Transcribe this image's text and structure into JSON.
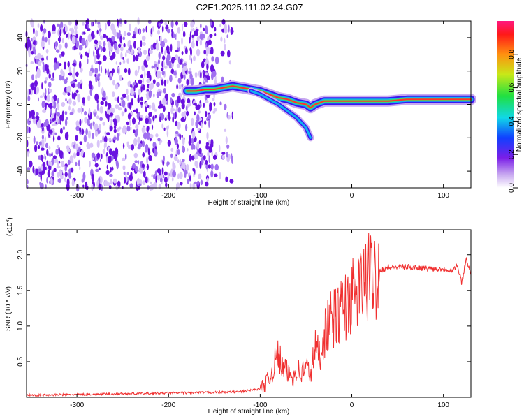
{
  "title": "C2E1.2025.111.02.34.G07",
  "colorbar": {
    "label": "Normalized spectral amplitude",
    "ticks": [
      "0.0",
      "0.2",
      "0.4",
      "0.6",
      "0.8"
    ],
    "tick_values": [
      0.0,
      0.2,
      0.4,
      0.6,
      0.8
    ],
    "range": [
      0,
      1
    ]
  },
  "chart_data": [
    {
      "type": "heatmap",
      "xlabel": "Height of straight line (km)",
      "ylabel": "Frequency (Hz)",
      "xlim": [
        -355,
        130
      ],
      "ylim": [
        -50,
        50
      ],
      "xticks": [
        "-300",
        "-200",
        "-100",
        "0",
        "100"
      ],
      "xtick_values": [
        -300,
        -200,
        -100,
        0,
        100
      ],
      "yticks": [
        "-40",
        "-20",
        "0",
        "20",
        "40"
      ],
      "ytick_values": [
        -40,
        -20,
        0,
        20,
        40
      ],
      "ridge": {
        "x": [
          -180,
          -170,
          -160,
          -150,
          -140,
          -130,
          -120,
          -110,
          -100,
          -90,
          -80,
          -70,
          -60,
          -50,
          -45,
          -40,
          -30,
          -20,
          -10,
          0,
          20,
          40,
          60,
          80,
          100,
          120,
          130
        ],
        "y": [
          8,
          8,
          9,
          9,
          10,
          11,
          10,
          9,
          8,
          6,
          4,
          3,
          1,
          0,
          -2,
          0,
          2,
          2,
          2,
          2,
          2,
          2,
          3,
          3,
          3,
          3,
          3
        ]
      },
      "branch": {
        "x": [
          -110,
          -100,
          -90,
          -80,
          -70,
          -60,
          -50,
          -45
        ],
        "y": [
          8,
          6,
          3,
          0,
          -4,
          -8,
          -14,
          -20
        ]
      },
      "noise_region": [
        -355,
        -150
      ]
    },
    {
      "type": "line",
      "xlabel": "Height of straight line (km)",
      "ylabel": "SNR (10 * v/v)",
      "scale_label": "(x10",
      "scale_exp": "4",
      "scale_close": ")",
      "xlim": [
        -355,
        130
      ],
      "ylim": [
        0,
        2.35
      ],
      "xticks": [
        "-300",
        "-200",
        "-100",
        "0",
        "100"
      ],
      "xtick_values": [
        -300,
        -200,
        -100,
        0,
        100
      ],
      "yticks": [
        "0.5",
        "1.0",
        "1.5",
        "2.0"
      ],
      "ytick_values": [
        0.5,
        1.0,
        1.5,
        2.0
      ],
      "color": "#f03030",
      "x": [
        -355,
        -300,
        -250,
        -200,
        -150,
        -120,
        -100,
        -90,
        -85,
        -80,
        -75,
        -70,
        -65,
        -60,
        -55,
        -50,
        -45,
        -40,
        -35,
        -30,
        -25,
        -20,
        -15,
        -10,
        -5,
        0,
        5,
        10,
        20,
        30,
        40,
        60,
        80,
        100,
        110,
        115,
        120,
        125,
        130
      ],
      "y": [
        0.03,
        0.04,
        0.05,
        0.06,
        0.07,
        0.08,
        0.12,
        0.25,
        0.45,
        0.6,
        0.38,
        0.35,
        0.28,
        0.4,
        0.32,
        0.45,
        0.3,
        0.7,
        0.6,
        0.9,
        1.05,
        1.1,
        1.15,
        1.25,
        1.3,
        1.4,
        1.45,
        1.55,
        1.7,
        1.78,
        1.82,
        1.83,
        1.81,
        1.8,
        1.78,
        1.85,
        1.6,
        1.95,
        1.72
      ]
    }
  ]
}
